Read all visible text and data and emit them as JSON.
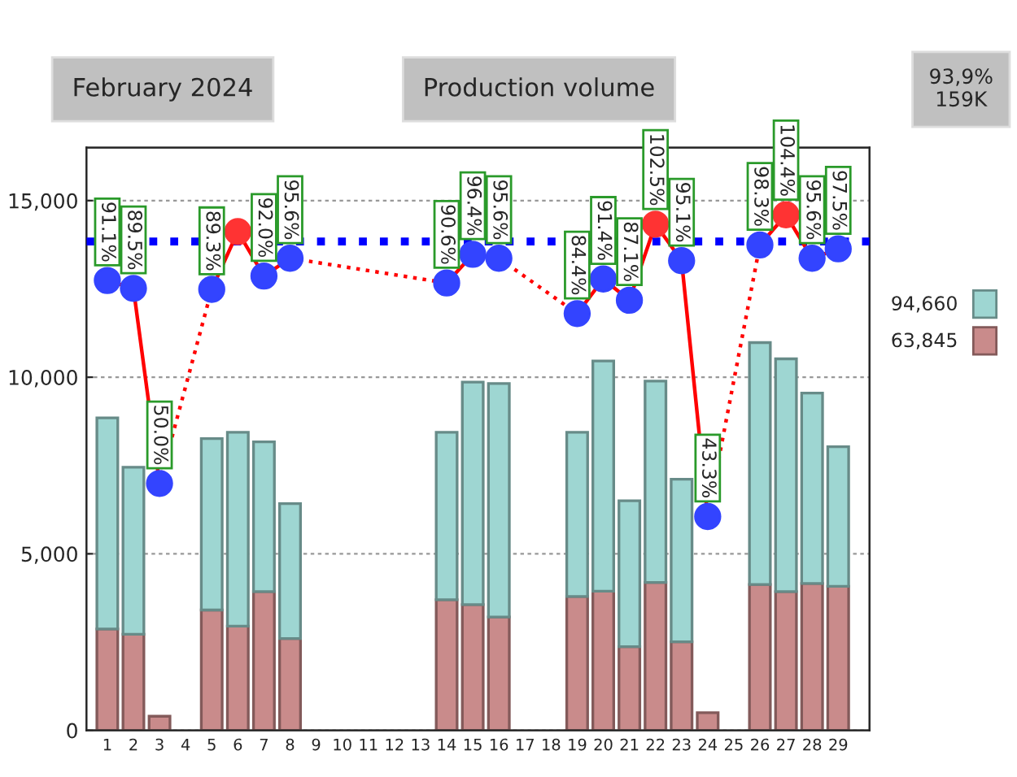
{
  "chart_data": {
    "type": "bar",
    "stacked": true,
    "categories": [
      "1",
      "2",
      "3",
      "4",
      "5",
      "6",
      "7",
      "8",
      "9",
      "10",
      "11",
      "12",
      "13",
      "14",
      "15",
      "16",
      "17",
      "18",
      "19",
      "20",
      "21",
      "22",
      "23",
      "24",
      "25",
      "26",
      "27",
      "28",
      "29"
    ],
    "series": [
      {
        "name": "63,845",
        "color": "#c98b8b",
        "values": [
          2870,
          2720,
          400,
          null,
          3410,
          2950,
          3930,
          2600,
          null,
          null,
          null,
          null,
          null,
          3700,
          3560,
          3210,
          null,
          null,
          3790,
          3940,
          2370,
          4190,
          2510,
          500,
          null,
          4130,
          3930,
          4160,
          4080
        ]
      },
      {
        "name": "94,660",
        "color": "#9ed6d2",
        "values": [
          5980,
          4730,
          null,
          null,
          4850,
          5490,
          4240,
          3820,
          null,
          null,
          null,
          null,
          null,
          4740,
          6300,
          6610,
          null,
          null,
          4650,
          6520,
          4130,
          5700,
          4600,
          null,
          null,
          6850,
          6590,
          5390,
          3950
        ]
      },
      {
        "type": "line",
        "axis": "y2",
        "color": "#ff0000",
        "marker": "circle",
        "line_style": "solid",
        "colors": [
          "#3344ff",
          "#3344ff",
          "#3344ff",
          null,
          "#3344ff",
          "#ff3333",
          "#3344ff",
          "#3344ff",
          null,
          null,
          null,
          null,
          null,
          "#3344ff",
          "#3344ff",
          "#3344ff",
          null,
          null,
          "#3344ff",
          "#3344ff",
          "#3344ff",
          "#ff3333",
          "#3344ff",
          "#3344ff",
          null,
          "#3344ff",
          "#ff3333",
          "#3344ff",
          "#3344ff"
        ],
        "values": [
          91.1,
          89.5,
          50.0,
          null,
          89.3,
          101,
          92.0,
          95.6,
          null,
          null,
          null,
          null,
          null,
          90.6,
          96.4,
          95.6,
          null,
          null,
          84.4,
          91.4,
          87.1,
          102.5,
          95.1,
          43.3,
          null,
          98.3,
          104.4,
          95.6,
          97.5
        ],
        "value_labels": [
          "91.1%",
          "89.5%",
          "50.0%",
          null,
          "89.3%",
          null,
          "92.0%",
          "95.6%",
          null,
          null,
          null,
          null,
          null,
          "90.6%",
          "96.4%",
          "95.6%",
          null,
          null,
          "84.4%",
          "91.4%",
          "87.1%",
          "102.5%",
          "95.1%",
          "43.3%",
          null,
          "98.3%",
          "104.4%",
          "95.6%",
          "97.5%"
        ]
      }
    ],
    "ylim": [
      0,
      16500
    ],
    "yticks": [
      0,
      {
        "value": 5000,
        "label": "5,000"
      },
      {
        "value": 10000,
        "label": "10,000"
      },
      {
        "value": 15000,
        "label": "15,000"
      }
    ],
    "y2lim": [
      0,
      118
    ],
    "ref_lines": [
      {
        "axis": "y2",
        "value": 99,
        "color": "#0000ff",
        "line_style": "dotted"
      }
    ],
    "grid": "y",
    "legend": "right",
    "annotations": [
      "February 2024",
      "Production volume",
      "93,9%\n159K"
    ]
  }
}
